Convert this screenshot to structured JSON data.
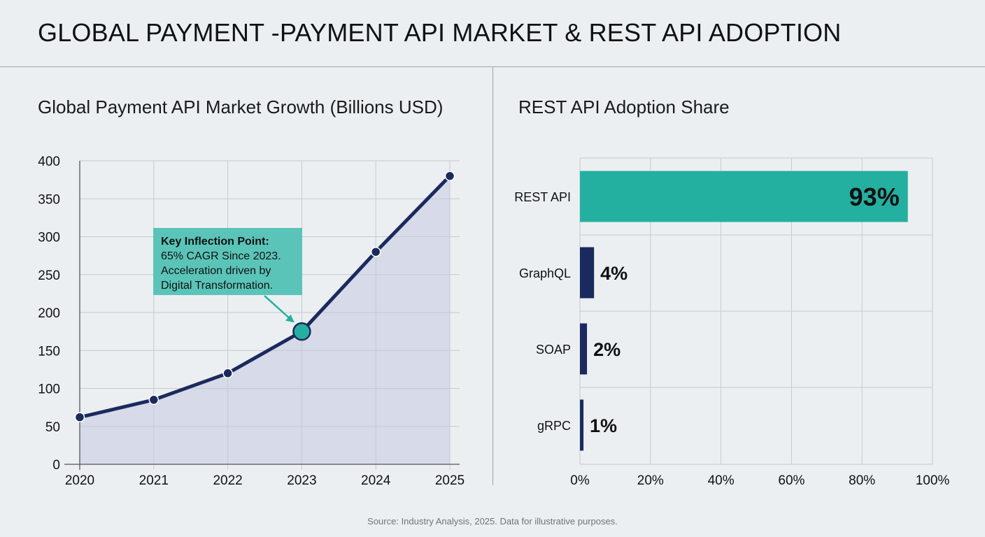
{
  "title": "GLOBAL PAYMENT -PAYMENT API MARKET & REST API ADOPTION",
  "source": "Source: Industry Analysis, 2025. Data for illustrative purposes.",
  "colors": {
    "navy": "#1b2a5e",
    "teal": "#24b0a0",
    "callout": "#5bc4b8",
    "area": "#d3d6e6",
    "grid": "#c6cacd"
  },
  "chart_data": [
    {
      "type": "line",
      "title": "Global Payment API Market Growth (Billions USD)",
      "xlabel": "",
      "ylabel": "",
      "x": [
        "2020",
        "2021",
        "2022",
        "2023",
        "2024",
        "2025"
      ],
      "values": [
        62,
        85,
        120,
        175,
        280,
        380
      ],
      "ylim": [
        0,
        400
      ],
      "yticks": [
        0,
        50,
        100,
        150,
        200,
        250,
        300,
        350,
        400
      ],
      "area_fill": true,
      "grid": true,
      "highlight": {
        "x": "2023",
        "title": "Key Inflection Point:",
        "lines": [
          "65% CAGR Since 2023.",
          "Acceleration driven by",
          "Digital Transformation."
        ]
      }
    },
    {
      "type": "bar",
      "orientation": "horizontal",
      "title": "REST API Adoption Share",
      "xlabel": "",
      "ylabel": "",
      "categories": [
        "REST API",
        "GraphQL",
        "SOAP",
        "gRPC"
      ],
      "values": [
        93,
        4,
        2,
        1
      ],
      "labels": [
        "93%",
        "4%",
        "2%",
        "1%"
      ],
      "xlim": [
        0,
        100
      ],
      "xticks": [
        "0%",
        "20%",
        "40%",
        "60%",
        "80%",
        "100%"
      ],
      "grid": true
    }
  ]
}
